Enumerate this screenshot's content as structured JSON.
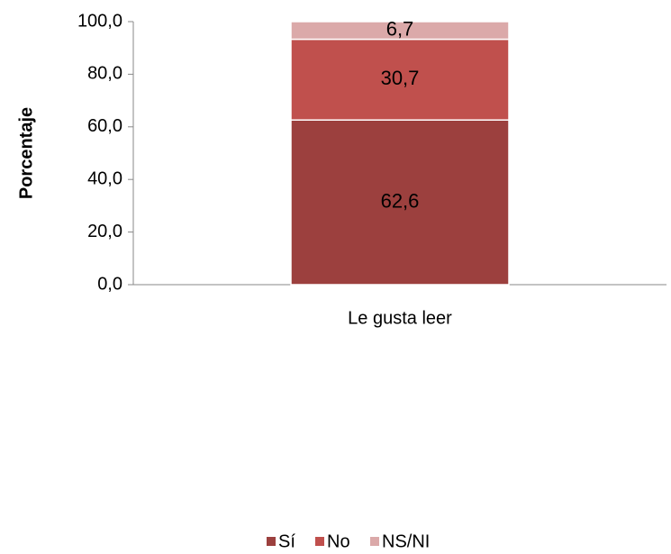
{
  "chart_data": {
    "type": "bar",
    "stacked": true,
    "ylabel": "Porcentaje",
    "categories": [
      "Le gusta leer"
    ],
    "series": [
      {
        "name": "Sí",
        "color": "#9c403e",
        "values": [
          62.6
        ],
        "value_labels": [
          "62,6"
        ]
      },
      {
        "name": "No",
        "color": "#c0504d",
        "values": [
          30.7
        ],
        "value_labels": [
          "30,7"
        ]
      },
      {
        "name": "NS/NI",
        "color": "#dba9a9",
        "values": [
          6.7
        ],
        "value_labels": [
          "6,7"
        ]
      }
    ],
    "ylim": [
      0,
      100
    ],
    "yticks": [
      {
        "value": 0,
        "label": "0,0"
      },
      {
        "value": 20,
        "label": "20,0"
      },
      {
        "value": 40,
        "label": "40,0"
      },
      {
        "value": 60,
        "label": "60,0"
      },
      {
        "value": 80,
        "label": "80,0"
      },
      {
        "value": 100,
        "label": "100,0"
      }
    ],
    "legend": "bottom"
  }
}
